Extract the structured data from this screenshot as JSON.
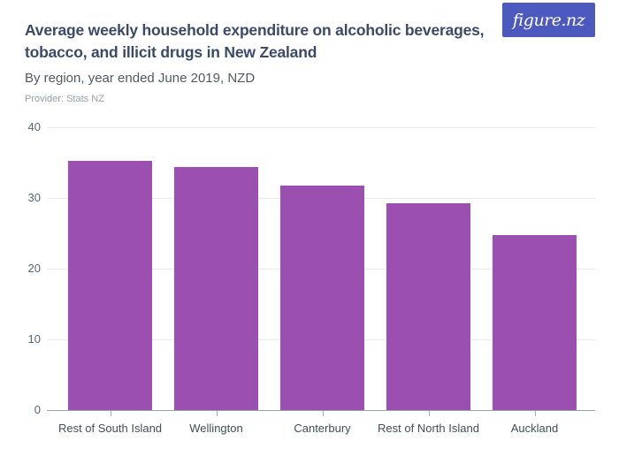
{
  "header": {
    "title_line1": "Average weekly household expenditure on alcoholic beverages,",
    "title_line2": "tobacco, and illicit drugs in New Zealand",
    "subtitle": "By region, year ended June 2019, NZD",
    "provider": "Provider: Stats NZ"
  },
  "logo": {
    "text": "figure.nz",
    "background_color": "#4c59bf",
    "text_color": "#ffffff"
  },
  "chart_data": {
    "type": "bar",
    "title": "Average weekly household expenditure on alcoholic beverages, tobacco, and illicit drugs in New Zealand",
    "subtitle": "By region, year ended June 2019, NZD",
    "provider": "Provider: Stats NZ",
    "categories": [
      "Rest of South Island",
      "Wellington",
      "Canterbury",
      "Rest of North Island",
      "Auckland"
    ],
    "values": [
      35.2,
      34.4,
      31.8,
      29.3,
      24.8
    ],
    "xlabel": "",
    "ylabel": "",
    "ylim": [
      0,
      40
    ],
    "yticks": [
      0,
      10,
      20,
      30,
      40
    ],
    "grid": true,
    "legend": "none",
    "bar_color": "#9b4fb0",
    "gridline_color": "#e9eaed",
    "axis_line_color": "#9aa1a8"
  }
}
